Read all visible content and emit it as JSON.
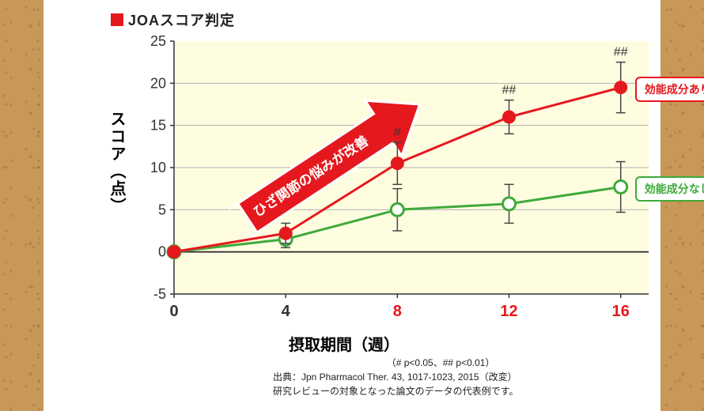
{
  "title": {
    "square_color": "#e5181e",
    "text": "JOAスコア判定",
    "fontsize": 18,
    "color": "#222222"
  },
  "chart": {
    "type": "line",
    "plot_bg_color": "#fffde0",
    "bg_color": "#ffffff",
    "grid_color": "#b0b0b0",
    "axis_color": "#333333",
    "xlabel": "摂取期間（週）",
    "xlabel_fontsize": 20,
    "ylabel": "スコア（点）",
    "ylabel_fontsize": 20,
    "xlim": [
      0,
      17
    ],
    "ylim": [
      -5,
      25
    ],
    "xticks": [
      0,
      4,
      8,
      12,
      16
    ],
    "xtick_colors": [
      "#333333",
      "#333333",
      "#e5181e",
      "#e5181e",
      "#e5181e"
    ],
    "xtick_fontsize": 20,
    "yticks": [
      -5,
      0,
      5,
      10,
      15,
      20,
      25
    ],
    "ytick_fontsize": 18,
    "zero_line_color": "#333333",
    "series": [
      {
        "name": "効能成分あり",
        "label": "効能成分あり",
        "color": "#e5181e",
        "text_color": "#e5181e",
        "line_width": 3,
        "marker": "filled-circle",
        "marker_size": 8,
        "x": [
          0,
          4,
          8,
          12,
          16
        ],
        "y": [
          0,
          2.2,
          10.5,
          16.0,
          19.5
        ],
        "err": [
          0,
          1.2,
          2.5,
          2.0,
          3.0
        ],
        "sig": [
          "",
          "",
          "#",
          "##",
          "##"
        ]
      },
      {
        "name": "効能成分なし",
        "label": "効能成分なし",
        "color": "#3faa3b",
        "text_color": "#3faa3b",
        "line_width": 3,
        "marker": "open-circle",
        "marker_size": 8,
        "x": [
          0,
          4,
          8,
          12,
          16
        ],
        "y": [
          0,
          1.5,
          5.0,
          5.7,
          7.7
        ],
        "err": [
          0,
          1.0,
          2.5,
          2.3,
          3.0
        ],
        "sig": [
          "",
          "",
          "",
          "",
          ""
        ]
      }
    ],
    "arrow": {
      "text": "ひざ関節の悩みが改善",
      "fill": "#e5181e",
      "stroke": "#ffffff",
      "text_color": "#ffffff",
      "tail_xy": [
        2.3,
        3.3
      ],
      "head_xy": [
        8.8,
        17.5
      ],
      "text_fontsize": 17
    },
    "sig_fontsize": 16,
    "sig_color": "#333333",
    "errbar_color": "#444444",
    "errbar_width": 1.5,
    "errbar_cap": 6
  },
  "footnotes": {
    "pvals": "（# p<0.05、## p<0.01）",
    "source": "出典：Jpn Pharmacol Ther. 43, 1017-1023, 2015（改変）",
    "note": "研究レビューの対象となった論文のデータの代表例です。"
  }
}
